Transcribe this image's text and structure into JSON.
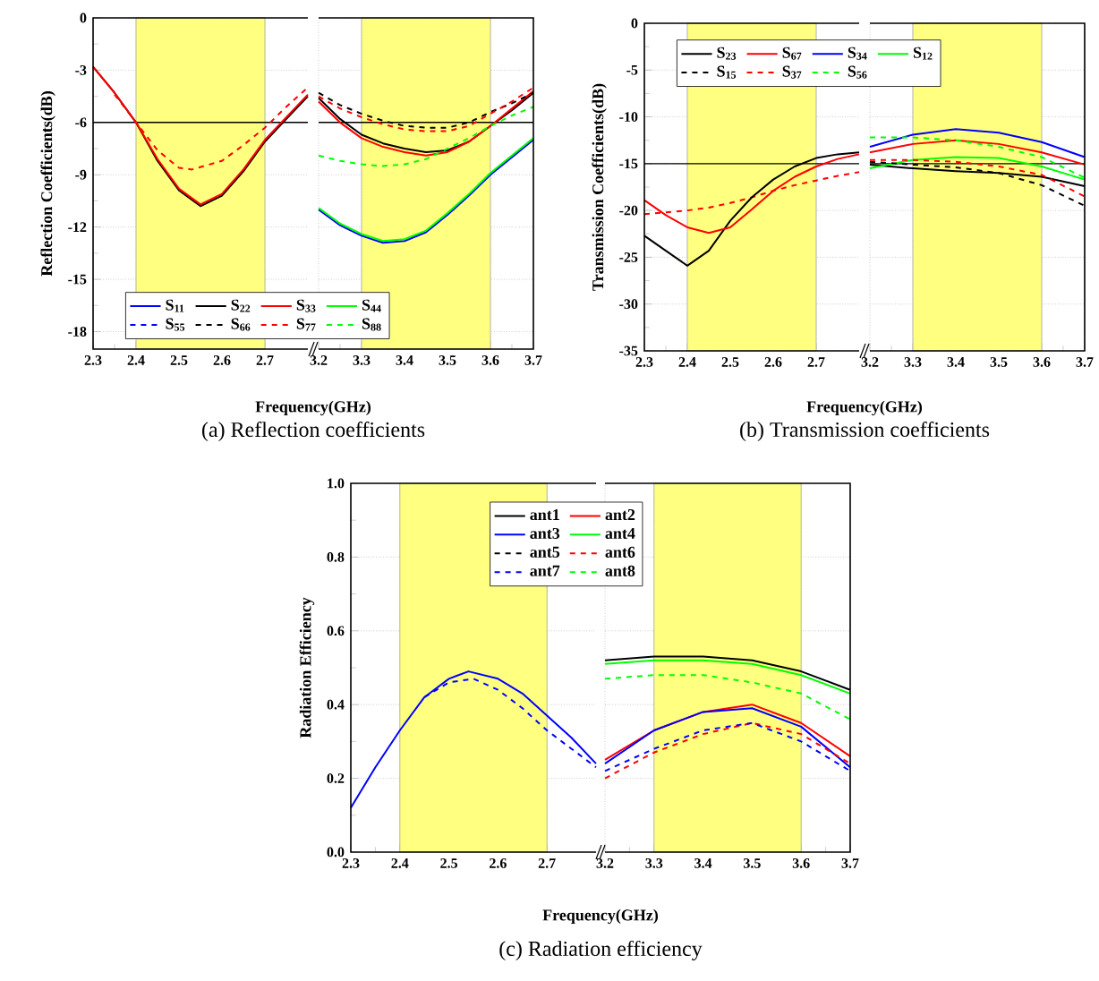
{
  "chart_data": [
    {
      "type": "line",
      "title": "(a) Reflection coefficients",
      "xlabel": "Frequency(GHz)",
      "ylabel": "Reflection Coefficients(dB)",
      "xlim": [
        2.3,
        2.8
      ],
      "xticks": [
        2.3,
        2.4,
        2.5,
        2.6,
        2.7
      ],
      "ylim": [
        -19,
        0
      ],
      "yticks": [
        0,
        -3,
        -6,
        -9,
        -12,
        -15,
        -18
      ],
      "grid": true,
      "bands": [
        {
          "axis": "x",
          "from": 2.4,
          "to": 2.7,
          "color": "#ffff80"
        }
      ],
      "ref_lines": [
        {
          "axis": "y",
          "value": -6,
          "color": "#000000"
        }
      ],
      "series": [
        {
          "color": "#000000",
          "line_style": "solid",
          "x": [
            2.3,
            2.35,
            2.4,
            2.45,
            2.5,
            2.55,
            2.6,
            2.65,
            2.7,
            2.75,
            2.8
          ],
          "values": [
            -2.8,
            -4.3,
            -6.0,
            -8.2,
            -9.9,
            -10.8,
            -10.2,
            -8.8,
            -7.1,
            -5.8,
            -4.5
          ]
        },
        {
          "color": "#ff0000",
          "line_style": "solid",
          "x": [
            2.3,
            2.35,
            2.4,
            2.45,
            2.5,
            2.55,
            2.6,
            2.65,
            2.7,
            2.75,
            2.8
          ],
          "values": [
            -2.8,
            -4.3,
            -6.0,
            -8.1,
            -9.8,
            -10.7,
            -10.1,
            -8.7,
            -7.0,
            -5.7,
            -4.4
          ]
        },
        {
          "color": "#ff0000",
          "line_style": "dashed",
          "x": [
            2.35,
            2.4,
            2.45,
            2.5,
            2.53,
            2.6,
            2.65,
            2.7,
            2.75,
            2.8
          ],
          "values": [
            -4.4,
            -6.0,
            -7.6,
            -8.6,
            -8.7,
            -8.2,
            -7.3,
            -6.3,
            -5.1,
            -4.0
          ]
        }
      ]
    },
    {
      "type": "line",
      "xlim": [
        3.2,
        3.7
      ],
      "xticks": [
        3.2,
        3.3,
        3.4,
        3.5,
        3.6,
        3.7
      ],
      "ylim": [
        -19,
        0
      ],
      "yticks": [
        0,
        -3,
        -6,
        -9,
        -12,
        -15,
        -18
      ],
      "tick_labels": "x",
      "grid": true,
      "legend": "bottom",
      "bands": [
        {
          "axis": "x",
          "from": 3.3,
          "to": 3.6,
          "color": "#ffff80"
        }
      ],
      "ref_lines": [
        {
          "axis": "y",
          "value": -6,
          "color": "#000000"
        }
      ],
      "x": [
        3.2,
        3.25,
        3.3,
        3.35,
        3.4,
        3.45,
        3.5,
        3.55,
        3.6,
        3.65,
        3.7
      ],
      "series": [
        {
          "name": "S$_{11}$",
          "color": "#0000ff",
          "line_style": "solid",
          "values": [
            -11.0,
            -11.9,
            -12.5,
            -12.9,
            -12.8,
            -12.3,
            -11.3,
            -10.2,
            -9.0,
            -8.0,
            -7.0
          ]
        },
        {
          "name": "S$_{22}$",
          "color": "#000000",
          "line_style": "solid",
          "values": [
            -4.6,
            -5.8,
            -6.7,
            -7.2,
            -7.5,
            -7.7,
            -7.6,
            -7.1,
            -6.2,
            -5.3,
            -4.3
          ]
        },
        {
          "name": "S$_{33}$",
          "color": "#ff0000",
          "line_style": "solid",
          "values": [
            -4.8,
            -6.0,
            -6.9,
            -7.4,
            -7.7,
            -7.9,
            -7.7,
            -7.1,
            -6.2,
            -5.2,
            -4.2
          ]
        },
        {
          "name": "S$_{44}$",
          "color": "#00ff00",
          "line_style": "solid",
          "values": [
            -10.9,
            -11.8,
            -12.4,
            -12.8,
            -12.7,
            -12.2,
            -11.2,
            -10.1,
            -8.9,
            -7.9,
            -6.9
          ]
        },
        {
          "name": "S$_{55}$",
          "color": "#0000ff",
          "line_style": "dashed",
          "values": [
            null,
            null,
            null,
            null,
            null,
            null,
            null,
            null,
            null,
            null,
            null
          ]
        },
        {
          "name": "S$_{66}$",
          "color": "#000000",
          "line_style": "dashed",
          "values": [
            -4.3,
            -5.0,
            -5.5,
            -5.9,
            -6.2,
            -6.3,
            -6.3,
            -6.0,
            -5.4,
            -4.9,
            -4.3
          ]
        },
        {
          "name": "S$_{77}$",
          "color": "#ff0000",
          "line_style": "dashed",
          "values": [
            -4.5,
            -5.2,
            -5.7,
            -6.1,
            -6.4,
            -6.5,
            -6.5,
            -6.2,
            -5.5,
            -4.8,
            -4.0
          ]
        },
        {
          "name": "S$_{88}$",
          "color": "#00ff00",
          "line_style": "dashed",
          "values": [
            -7.9,
            -8.2,
            -8.4,
            -8.5,
            -8.4,
            -8.1,
            -7.5,
            -6.9,
            -6.2,
            -5.6,
            -5.1
          ]
        }
      ]
    },
    {
      "type": "line",
      "title": "(b) Transmission coefficients",
      "xlabel": "Frequency(GHz)",
      "ylabel": "Transmission Coefficients(dB)",
      "xlim": [
        2.3,
        2.8
      ],
      "xticks": [
        2.3,
        2.4,
        2.5,
        2.6,
        2.7
      ],
      "ylim": [
        -35,
        0
      ],
      "yticks": [
        0,
        -5,
        -10,
        -15,
        -20,
        -25,
        -30,
        -35
      ],
      "grid": true,
      "bands": [
        {
          "axis": "x",
          "from": 2.4,
          "to": 2.7,
          "color": "#ffff80"
        }
      ],
      "ref_lines": [
        {
          "axis": "y",
          "value": -15,
          "color": "#000000"
        }
      ],
      "x": [
        2.3,
        2.35,
        2.4,
        2.45,
        2.5,
        2.55,
        2.6,
        2.65,
        2.7,
        2.75,
        2.8
      ],
      "series": [
        {
          "color": "#ff0000",
          "line_style": "dashed",
          "values": [
            -20.4,
            -20.2,
            -20.0,
            -19.7,
            -19.2,
            -18.6,
            -17.9,
            -17.3,
            -16.8,
            -16.3,
            -15.9
          ]
        },
        {
          "color": "#000000",
          "line_style": "solid",
          "values": [
            -22.7,
            -24.3,
            -25.9,
            -24.3,
            -21.1,
            -18.6,
            -16.7,
            -15.3,
            -14.4,
            -14.0,
            -13.8
          ]
        },
        {
          "color": "#ff0000",
          "line_style": "solid",
          "values": [
            -18.9,
            -20.5,
            -21.8,
            -22.4,
            -21.8,
            -19.9,
            -17.9,
            -16.4,
            -15.3,
            -14.5,
            -14.0
          ]
        }
      ]
    },
    {
      "type": "line",
      "xlim": [
        3.2,
        3.7
      ],
      "xticks": [
        3.2,
        3.3,
        3.4,
        3.5,
        3.6,
        3.7
      ],
      "ylim": [
        -35,
        0
      ],
      "yticks": [
        0,
        -5,
        -10,
        -15,
        -20,
        -25,
        -30,
        -35
      ],
      "tick_labels": "x",
      "grid": true,
      "legend": "top",
      "bands": [
        {
          "axis": "x",
          "from": 3.3,
          "to": 3.6,
          "color": "#ffff80"
        }
      ],
      "ref_lines": [
        {
          "axis": "y",
          "value": -15,
          "color": "#000000"
        }
      ],
      "x": [
        3.2,
        3.3,
        3.4,
        3.5,
        3.6,
        3.7
      ],
      "series": [
        {
          "name": "S$_{23}$",
          "color": "#000000",
          "line_style": "solid",
          "values": [
            -15.1,
            -15.5,
            -15.8,
            -16.0,
            -16.4,
            -17.4
          ]
        },
        {
          "name": "S$_{67}$",
          "color": "#ff0000",
          "line_style": "solid",
          "values": [
            -13.8,
            -12.9,
            -12.5,
            -12.9,
            -13.8,
            -15.1
          ]
        },
        {
          "name": "S$_{34}$",
          "color": "#0000ff",
          "line_style": "solid",
          "values": [
            -13.2,
            -11.9,
            -11.3,
            -11.7,
            -12.7,
            -14.3
          ]
        },
        {
          "name": "S$_{12}$",
          "color": "#00ff00",
          "line_style": "solid",
          "values": [
            -15.5,
            -14.6,
            -14.3,
            -14.4,
            -15.3,
            -16.7
          ]
        },
        {
          "name": "S$_{15}$",
          "color": "#000000",
          "line_style": "dashed",
          "values": [
            -14.8,
            -15.1,
            -15.4,
            -16.0,
            -17.3,
            -19.5
          ]
        },
        {
          "name": "S$_{37}$",
          "color": "#ff0000",
          "line_style": "dashed",
          "values": [
            -14.6,
            -14.6,
            -14.8,
            -15.3,
            -16.2,
            -18.5
          ]
        },
        {
          "name": "S$_{56}$",
          "color": "#00ff00",
          "line_style": "dashed",
          "values": [
            -12.2,
            -12.2,
            -12.5,
            -13.2,
            -14.3,
            -16.5
          ]
        }
      ]
    },
    {
      "type": "line",
      "title": "(c) Radiation efficiency",
      "xlabel": "Frequency(GHz)",
      "ylabel": "Radiation Efficiency",
      "xlim": [
        2.3,
        2.8
      ],
      "xticks": [
        2.3,
        2.4,
        2.5,
        2.6,
        2.7
      ],
      "ylim": [
        0,
        1
      ],
      "yticks": [
        {
          "value": 0,
          "label": "0.0"
        },
        0.2,
        0.4,
        0.6,
        0.8,
        {
          "value": 1,
          "label": "1.0"
        }
      ],
      "grid": true,
      "bands": [
        {
          "axis": "x",
          "from": 2.4,
          "to": 2.7,
          "color": "#ffff80"
        }
      ],
      "series": [
        {
          "color": "#0000ff",
          "line_style": "solid",
          "x": [
            2.3,
            2.35,
            2.4,
            2.45,
            2.5,
            2.54,
            2.6,
            2.65,
            2.7,
            2.75,
            2.8
          ],
          "values": [
            0.12,
            0.23,
            0.33,
            0.42,
            0.47,
            0.49,
            0.47,
            0.43,
            0.37,
            0.31,
            0.24
          ]
        },
        {
          "color": "#0000ff",
          "line_style": "dashed",
          "x": [
            2.45,
            2.5,
            2.55,
            2.6,
            2.65,
            2.7,
            2.75,
            2.8
          ],
          "values": [
            0.42,
            0.46,
            0.47,
            0.44,
            0.39,
            0.33,
            0.28,
            0.23
          ]
        }
      ]
    },
    {
      "type": "line",
      "xlim": [
        3.2,
        3.7
      ],
      "xticks": [
        3.2,
        3.3,
        3.4,
        3.5,
        3.6,
        3.7
      ],
      "ylim": [
        0,
        1
      ],
      "yticks": [
        0,
        0.2,
        0.4,
        0.6,
        0.8,
        1
      ],
      "tick_labels": "x",
      "grid": true,
      "legend": "top",
      "bands": [
        {
          "axis": "x",
          "from": 3.3,
          "to": 3.6,
          "color": "#ffff80"
        }
      ],
      "x": [
        3.2,
        3.3,
        3.4,
        3.5,
        3.6,
        3.7
      ],
      "series": [
        {
          "name": "ant1",
          "color": "#000000",
          "line_style": "solid",
          "values": [
            0.52,
            0.53,
            0.53,
            0.52,
            0.49,
            0.44
          ]
        },
        {
          "name": "ant2",
          "color": "#ff0000",
          "line_style": "solid",
          "values": [
            0.25,
            0.33,
            0.38,
            0.4,
            0.35,
            0.26
          ]
        },
        {
          "name": "ant3",
          "color": "#0000ff",
          "line_style": "solid",
          "values": [
            0.24,
            0.33,
            0.38,
            0.39,
            0.34,
            0.23
          ]
        },
        {
          "name": "ant4",
          "color": "#00ff00",
          "line_style": "solid",
          "values": [
            0.51,
            0.52,
            0.52,
            0.51,
            0.48,
            0.43
          ]
        },
        {
          "name": "ant5",
          "color": "#000000",
          "line_style": "dashed",
          "values": [
            null,
            null,
            null,
            null,
            null,
            null
          ]
        },
        {
          "name": "ant6",
          "color": "#ff0000",
          "line_style": "dashed",
          "values": [
            0.2,
            0.27,
            0.32,
            0.35,
            0.32,
            0.24
          ]
        },
        {
          "name": "ant7",
          "color": "#0000ff",
          "line_style": "dashed",
          "values": [
            0.22,
            0.28,
            0.33,
            0.35,
            0.3,
            0.22
          ]
        },
        {
          "name": "ant8",
          "color": "#00ff00",
          "line_style": "dashed",
          "values": [
            0.47,
            0.48,
            0.48,
            0.46,
            0.43,
            0.36
          ]
        }
      ]
    }
  ]
}
